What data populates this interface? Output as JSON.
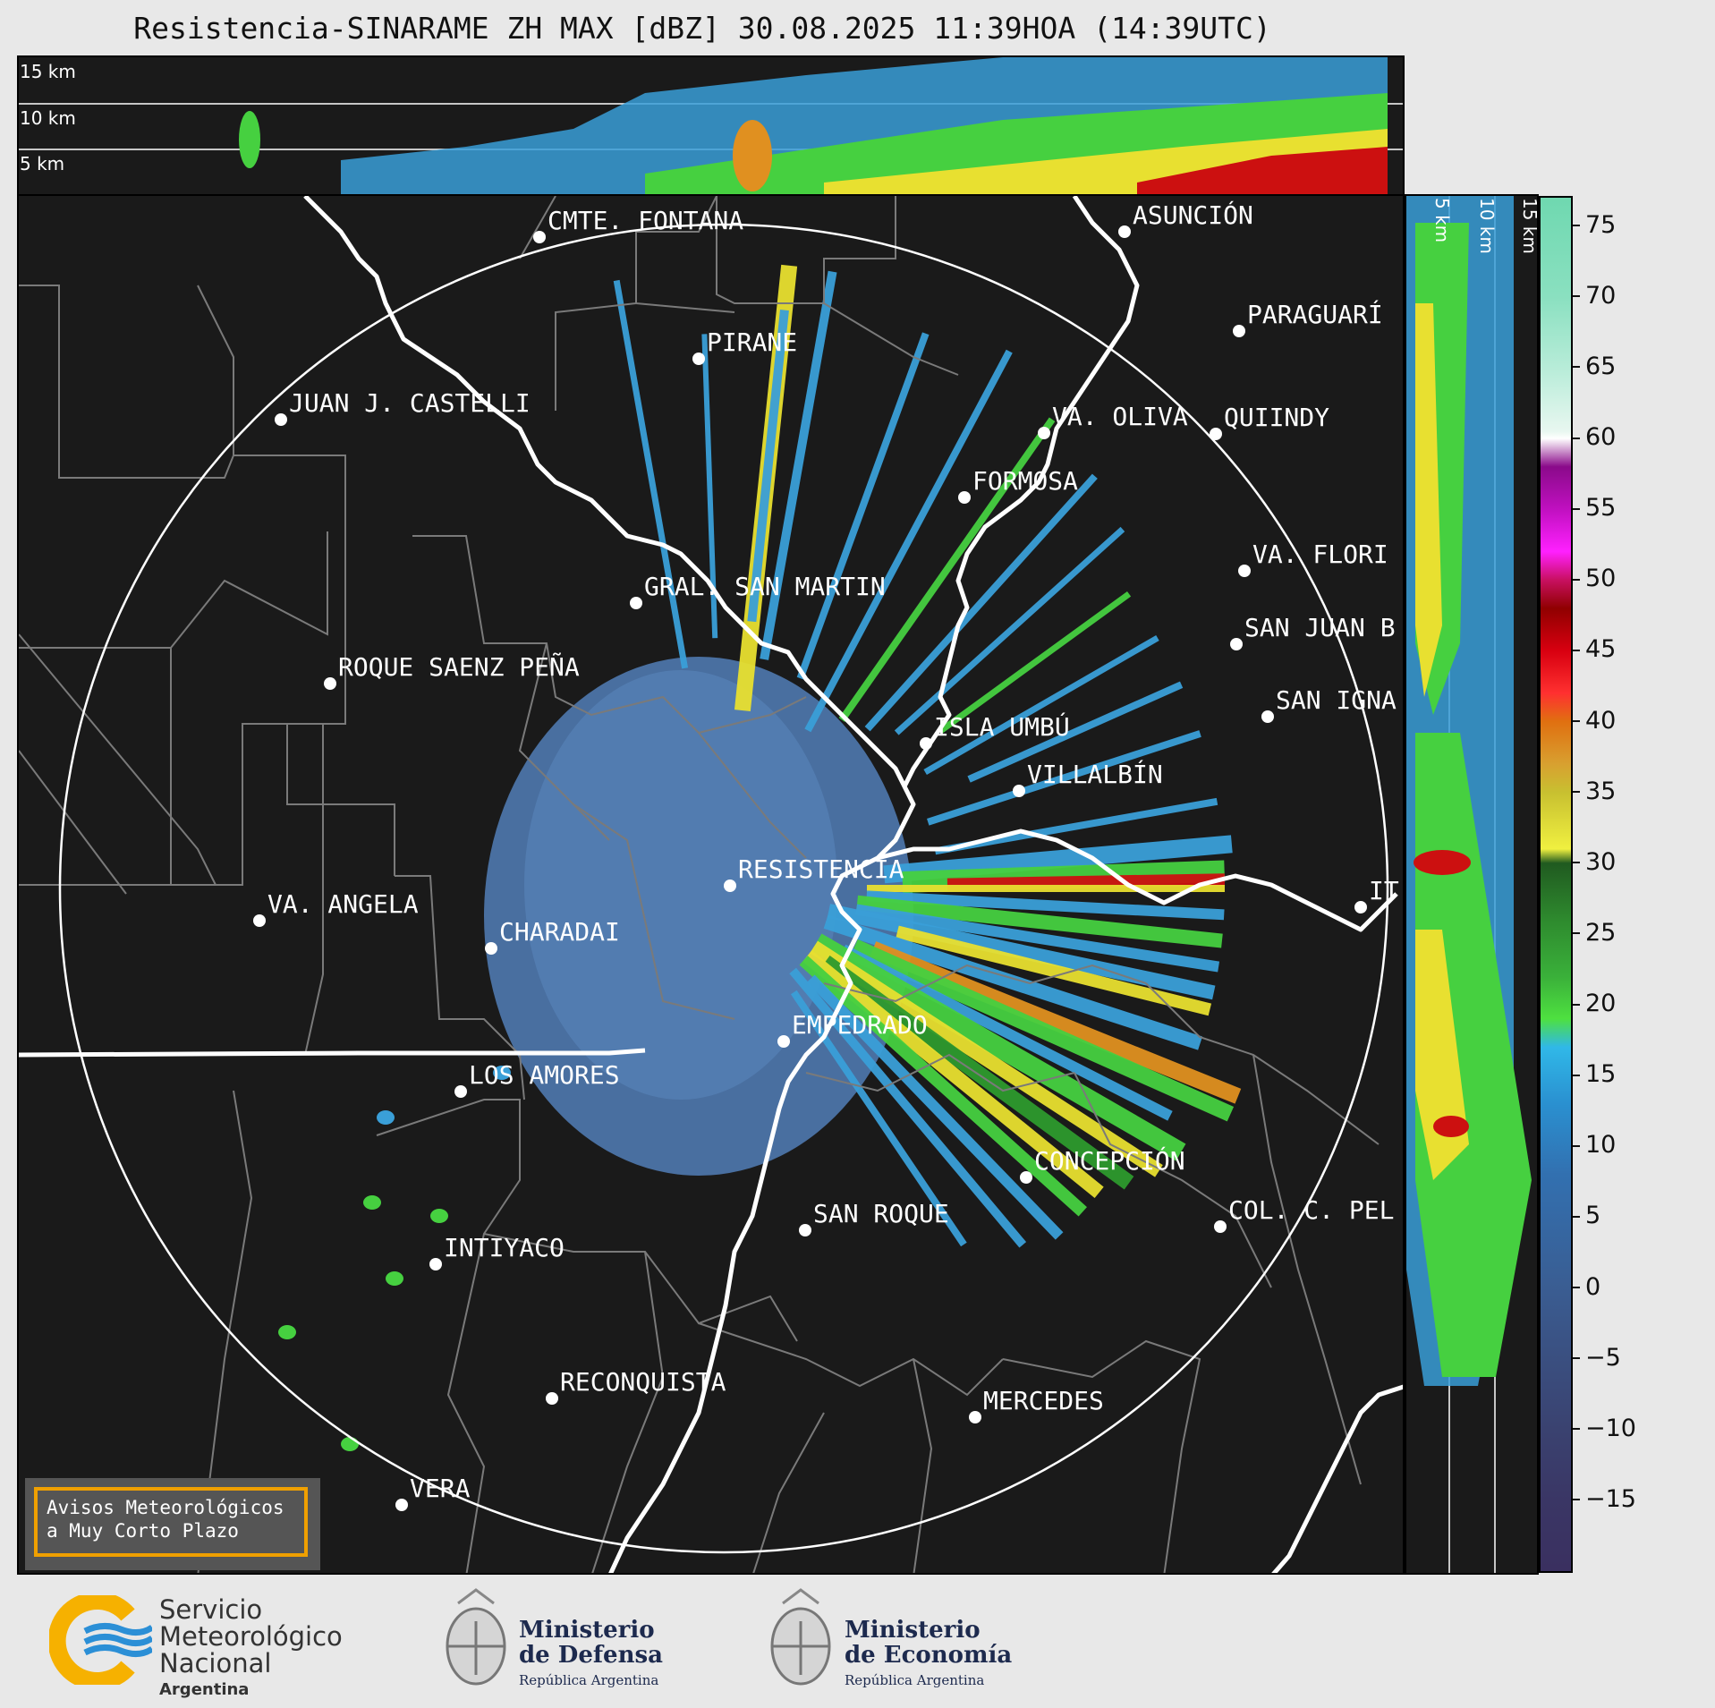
{
  "title": "Resistencia-SINARAME ZH MAX [dBZ] 30.08.2025 11:39HOA (14:39UTC)",
  "height_labels": [
    "15 km",
    "10 km",
    "5 km"
  ],
  "side_labels": [
    "5 km",
    "10 km",
    "15 km"
  ],
  "cities": [
    {
      "name": "CMTE. FONTANA",
      "label": "CMTE. FONTANA"
    },
    {
      "name": "PIRANE",
      "label": "PIRANE"
    },
    {
      "name": "JUAN J. CASTELLI",
      "label": "JUAN J. CASTELLI"
    },
    {
      "name": "ASUNCION",
      "label": "ASUNCIÓN"
    },
    {
      "name": "PARAGUARI",
      "label": "PARAGUARÍ"
    },
    {
      "name": "VA. OLIVA",
      "label": "VA. OLIVA"
    },
    {
      "name": "QUIINDY",
      "label": "QUIINDY"
    },
    {
      "name": "FORMOSA",
      "label": "FORMOSA"
    },
    {
      "name": "VA. FLORIDA",
      "label": "VA. FLORI"
    },
    {
      "name": "GRAL. SAN MARTIN",
      "label": "GRAL. SAN MARTIN"
    },
    {
      "name": "SAN JUAN B",
      "label": "SAN JUAN B"
    },
    {
      "name": "ROQUE SAENZ PENA",
      "label": "ROQUE SAENZ PEÑA"
    },
    {
      "name": "SAN IGNACIO",
      "label": "SAN IGNA"
    },
    {
      "name": "ISLA UMBU",
      "label": "ISLA UMBÚ"
    },
    {
      "name": "VILLALBIN",
      "label": "VILLALBÍN"
    },
    {
      "name": "RESISTENCIA",
      "label": "RESISTENCIA"
    },
    {
      "name": "VA. ANGELA",
      "label": "VA. ANGELA"
    },
    {
      "name": "CHARADAI",
      "label": "CHARADAI"
    },
    {
      "name": "ITA",
      "label": "IT"
    },
    {
      "name": "EMPEDRADO",
      "label": "EMPEDRADO"
    },
    {
      "name": "LOS AMORES",
      "label": "LOS AMORES"
    },
    {
      "name": "CONCEPCION",
      "label": "CONCEPCIÓN"
    },
    {
      "name": "COL. C. PELLEGRINI",
      "label": "COL. C. PEL"
    },
    {
      "name": "SAN ROQUE",
      "label": "SAN ROQUE"
    },
    {
      "name": "INTIYACO",
      "label": "INTIYACO"
    },
    {
      "name": "RECONQUISTA",
      "label": "RECONQUISTA"
    },
    {
      "name": "MERCEDES",
      "label": "MERCEDES"
    },
    {
      "name": "VERA",
      "label": "VERA"
    }
  ],
  "colorbar": {
    "ticks": [
      "75",
      "70",
      "65",
      "60",
      "55",
      "50",
      "45",
      "40",
      "35",
      "30",
      "25",
      "20",
      "15",
      "10",
      "5",
      "0",
      "−5",
      "−10",
      "−15"
    ],
    "min": -20,
    "max": 77
  },
  "alert": {
    "line1": "Avisos Meteorológicos",
    "line2": "a Muy Corto Plazo"
  },
  "logos": {
    "smn": {
      "line1": "Servicio",
      "line2": "Meteorológico",
      "line3": "Nacional",
      "line4": "Argentina"
    },
    "defensa": {
      "line1": "Ministerio",
      "line2": "de Defensa",
      "line3": "República Argentina"
    },
    "economia": {
      "line1": "Ministerio",
      "line2": "de Economía",
      "line3": "República Argentina"
    }
  },
  "colors": {
    "orange": "#f0a000",
    "smn_blue": "#2b8fd6",
    "smn_yellow": "#f6b100"
  }
}
